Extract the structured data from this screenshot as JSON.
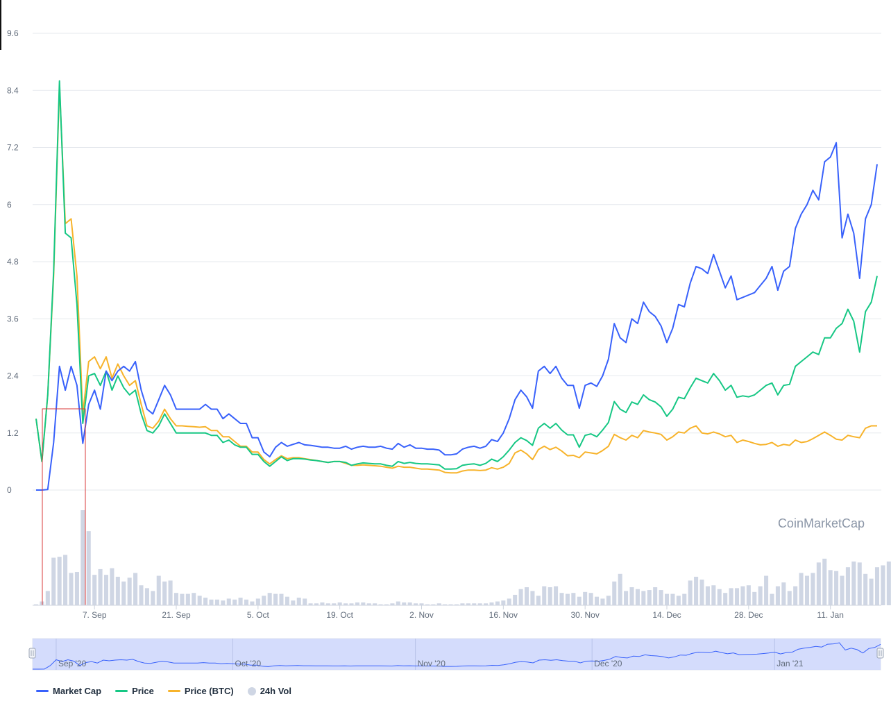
{
  "chart_data": {
    "type": "line",
    "watermark": "CoinMarketCap",
    "y_axis": {
      "ticks": [
        "0",
        "1.2",
        "2.4",
        "3.6",
        "4.8",
        "6",
        "7.2",
        "8.4",
        "9.6"
      ],
      "ylim": [
        0,
        9.6
      ]
    },
    "x_axis": {
      "start_date": "2020-08-28",
      "end_date": "2021-01-15",
      "ticks": [
        {
          "label": "7. Sep",
          "date": "2020-09-07"
        },
        {
          "label": "21. Sep",
          "date": "2020-09-21"
        },
        {
          "label": "5. Oct",
          "date": "2020-10-05"
        },
        {
          "label": "19. Oct",
          "date": "2020-10-19"
        },
        {
          "label": "2. Nov",
          "date": "2020-11-02"
        },
        {
          "label": "16. Nov",
          "date": "2020-11-16"
        },
        {
          "label": "30. Nov",
          "date": "2020-11-30"
        },
        {
          "label": "14. Dec",
          "date": "2020-12-14"
        },
        {
          "label": "28. Dec",
          "date": "2020-12-28"
        },
        {
          "label": "11. Jan",
          "date": "2021-01-11"
        }
      ]
    },
    "navigator_labels": [
      {
        "label": "Sep '20",
        "date": "2020-09-01"
      },
      {
        "label": "Oct '20",
        "date": "2020-10-01"
      },
      {
        "label": "Nov '20",
        "date": "2020-11-01"
      },
      {
        "label": "Dec '20",
        "date": "2020-12-01"
      },
      {
        "label": "Jan '21",
        "date": "2021-01-01"
      }
    ],
    "series": [
      {
        "name": "Market Cap",
        "color": "#3861fb",
        "values": [
          0,
          0,
          0.01,
          1.0,
          2.6,
          2.1,
          2.6,
          2.2,
          0.98,
          1.8,
          2.1,
          1.7,
          2.5,
          2.3,
          2.5,
          2.6,
          2.5,
          2.7,
          2.1,
          1.7,
          1.6,
          1.9,
          2.2,
          2.0,
          1.7,
          1.7,
          1.7,
          1.7,
          1.7,
          1.8,
          1.7,
          1.7,
          1.5,
          1.6,
          1.5,
          1.4,
          1.4,
          1.1,
          1.1,
          0.8,
          0.7,
          0.9,
          1.0,
          0.92,
          0.96,
          1.0,
          0.95,
          0.94,
          0.92,
          0.9,
          0.9,
          0.88,
          0.88,
          0.92,
          0.86,
          0.9,
          0.92,
          0.9,
          0.9,
          0.92,
          0.88,
          0.86,
          0.98,
          0.9,
          0.95,
          0.88,
          0.88,
          0.86,
          0.86,
          0.84,
          0.74,
          0.74,
          0.76,
          0.86,
          0.9,
          0.92,
          0.88,
          0.92,
          1.06,
          1.02,
          1.2,
          1.5,
          1.9,
          2.1,
          1.96,
          1.72,
          2.5,
          2.6,
          2.45,
          2.6,
          2.35,
          2.2,
          2.2,
          1.72,
          2.2,
          2.25,
          2.18,
          2.4,
          2.75,
          3.5,
          3.2,
          3.1,
          3.6,
          3.5,
          3.95,
          3.75,
          3.65,
          3.45,
          3.1,
          3.4,
          3.9,
          3.85,
          4.35,
          4.7,
          4.65,
          4.55,
          4.95,
          4.6,
          4.25,
          4.5,
          4.0,
          4.05,
          4.1,
          4.15,
          4.3,
          4.45,
          4.7,
          4.2,
          4.6,
          4.7,
          5.5,
          5.8,
          6.0,
          6.3,
          6.1,
          6.9,
          7.0,
          7.3,
          5.3,
          5.8,
          5.4,
          4.45,
          5.7,
          6.0,
          6.85
        ]
      },
      {
        "name": "Price",
        "color": "#16c784",
        "values": [
          1.5,
          0.6,
          2.0,
          4.6,
          8.6,
          5.4,
          5.3,
          3.9,
          1.4,
          2.4,
          2.45,
          2.2,
          2.5,
          2.1,
          2.4,
          2.15,
          2.0,
          2.1,
          1.6,
          1.25,
          1.2,
          1.35,
          1.6,
          1.4,
          1.2,
          1.2,
          1.2,
          1.2,
          1.2,
          1.2,
          1.15,
          1.15,
          1.0,
          1.05,
          0.95,
          0.9,
          0.9,
          0.75,
          0.75,
          0.6,
          0.5,
          0.6,
          0.7,
          0.62,
          0.66,
          0.66,
          0.65,
          0.63,
          0.62,
          0.6,
          0.58,
          0.6,
          0.6,
          0.58,
          0.52,
          0.55,
          0.57,
          0.56,
          0.55,
          0.55,
          0.52,
          0.5,
          0.6,
          0.56,
          0.58,
          0.56,
          0.55,
          0.55,
          0.54,
          0.53,
          0.44,
          0.44,
          0.45,
          0.52,
          0.54,
          0.55,
          0.52,
          0.56,
          0.65,
          0.6,
          0.7,
          0.84,
          1.0,
          1.1,
          1.04,
          0.94,
          1.3,
          1.4,
          1.3,
          1.4,
          1.26,
          1.16,
          1.16,
          0.9,
          1.15,
          1.18,
          1.12,
          1.26,
          1.42,
          1.86,
          1.7,
          1.63,
          1.85,
          1.8,
          2.0,
          1.9,
          1.85,
          1.75,
          1.55,
          1.7,
          1.95,
          1.92,
          2.15,
          2.35,
          2.3,
          2.25,
          2.45,
          2.3,
          2.1,
          2.2,
          1.95,
          1.98,
          1.96,
          2.0,
          2.1,
          2.2,
          2.25,
          2.0,
          2.2,
          2.22,
          2.6,
          2.7,
          2.8,
          2.9,
          2.85,
          3.2,
          3.2,
          3.4,
          3.5,
          3.8,
          3.55,
          2.9,
          3.75,
          3.95,
          4.5
        ]
      },
      {
        "name": "Price (BTC)",
        "color": "#f7b32b",
        "values": [
          1.5,
          0.6,
          2.0,
          4.5,
          8.5,
          5.6,
          5.7,
          4.5,
          1.6,
          2.7,
          2.8,
          2.55,
          2.8,
          2.35,
          2.65,
          2.4,
          2.2,
          2.3,
          1.8,
          1.35,
          1.3,
          1.45,
          1.7,
          1.5,
          1.35,
          1.35,
          1.34,
          1.33,
          1.32,
          1.33,
          1.25,
          1.25,
          1.12,
          1.12,
          1.02,
          0.92,
          0.92,
          0.8,
          0.8,
          0.64,
          0.55,
          0.64,
          0.72,
          0.66,
          0.68,
          0.68,
          0.66,
          0.64,
          0.62,
          0.6,
          0.58,
          0.6,
          0.6,
          0.56,
          0.52,
          0.52,
          0.53,
          0.52,
          0.51,
          0.5,
          0.48,
          0.46,
          0.5,
          0.48,
          0.48,
          0.46,
          0.44,
          0.44,
          0.43,
          0.42,
          0.37,
          0.36,
          0.36,
          0.4,
          0.42,
          0.42,
          0.41,
          0.42,
          0.47,
          0.44,
          0.48,
          0.56,
          0.78,
          0.84,
          0.76,
          0.64,
          0.85,
          0.92,
          0.85,
          0.9,
          0.82,
          0.72,
          0.73,
          0.68,
          0.8,
          0.78,
          0.76,
          0.83,
          0.92,
          1.17,
          1.1,
          1.05,
          1.15,
          1.1,
          1.25,
          1.22,
          1.2,
          1.17,
          1.05,
          1.12,
          1.22,
          1.2,
          1.3,
          1.35,
          1.2,
          1.18,
          1.22,
          1.18,
          1.12,
          1.15,
          1.0,
          1.05,
          1.02,
          0.98,
          0.95,
          0.96,
          1.0,
          0.92,
          0.96,
          0.94,
          1.05,
          1.0,
          1.02,
          1.08,
          1.15,
          1.22,
          1.15,
          1.07,
          1.05,
          1.15,
          1.12,
          1.1,
          1.3,
          1.35,
          1.35
        ]
      }
    ],
    "volume": {
      "name": "24h Vol",
      "color": "#cfd6e4",
      "max": 1.0,
      "values": [
        0.01,
        0.04,
        0.15,
        0.5,
        0.51,
        0.53,
        0.34,
        0.35,
        1.0,
        0.78,
        0.32,
        0.38,
        0.32,
        0.39,
        0.3,
        0.25,
        0.29,
        0.34,
        0.21,
        0.18,
        0.15,
        0.31,
        0.25,
        0.26,
        0.13,
        0.12,
        0.12,
        0.13,
        0.1,
        0.08,
        0.06,
        0.06,
        0.05,
        0.07,
        0.06,
        0.08,
        0.06,
        0.04,
        0.07,
        0.1,
        0.13,
        0.12,
        0.12,
        0.09,
        0.05,
        0.08,
        0.07,
        0.02,
        0.02,
        0.03,
        0.02,
        0.02,
        0.03,
        0.02,
        0.02,
        0.03,
        0.03,
        0.02,
        0.02,
        0.01,
        0.01,
        0.02,
        0.04,
        0.03,
        0.03,
        0.02,
        0.02,
        0.01,
        0.01,
        0.02,
        0.01,
        0.01,
        0.01,
        0.02,
        0.02,
        0.02,
        0.02,
        0.02,
        0.03,
        0.04,
        0.05,
        0.07,
        0.11,
        0.17,
        0.19,
        0.15,
        0.1,
        0.2,
        0.19,
        0.2,
        0.13,
        0.12,
        0.13,
        0.09,
        0.14,
        0.13,
        0.09,
        0.07,
        0.1,
        0.25,
        0.33,
        0.15,
        0.19,
        0.17,
        0.15,
        0.16,
        0.19,
        0.16,
        0.12,
        0.12,
        0.1,
        0.12,
        0.26,
        0.3,
        0.27,
        0.2,
        0.21,
        0.17,
        0.13,
        0.18,
        0.18,
        0.2,
        0.21,
        0.14,
        0.2,
        0.31,
        0.12,
        0.2,
        0.24,
        0.15,
        0.2,
        0.34,
        0.31,
        0.34,
        0.45,
        0.49,
        0.37,
        0.36,
        0.31,
        0.4,
        0.46,
        0.45,
        0.33,
        0.28,
        0.4,
        0.42,
        0.46,
        0.47,
        0.5
      ]
    }
  },
  "legend": {
    "market_cap": "Market Cap",
    "price": "Price",
    "price_btc": "Price (BTC)",
    "volume": "24h Vol"
  },
  "colors": {
    "market_cap": "#3861fb",
    "price": "#16c784",
    "price_btc": "#f7b32b",
    "volume": "#cfd6e4",
    "grid": "#e6e9ee",
    "navigator_fill": "#ccd6fb",
    "highlight_box": "#d93a3a"
  }
}
